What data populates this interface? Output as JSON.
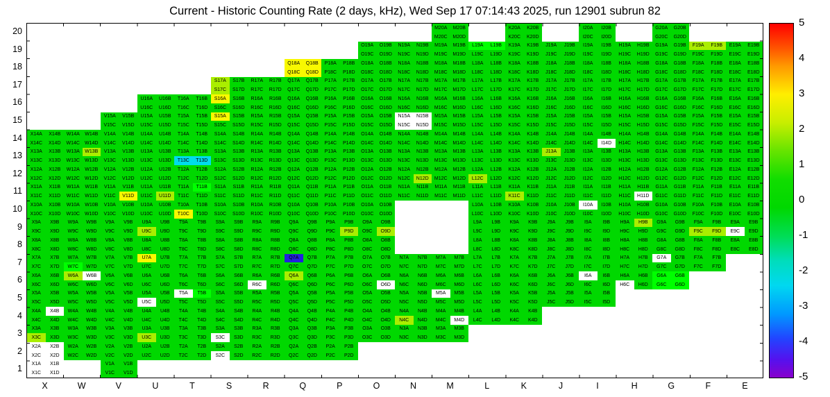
{
  "title": "Current - Historic Counting Rate (2 days, kHz), Wed Sep 17 07:14:43 2025, run 12901 subrun 82",
  "chart_data": {
    "type": "heatmap",
    "title": "Current - Historic Counting Rate (2 days, kHz), Wed Sep 17 07:14:43 2025, run 12901 subrun 82",
    "columns": [
      "X",
      "W",
      "V",
      "U",
      "T",
      "S",
      "R",
      "Q",
      "P",
      "O",
      "N",
      "M",
      "L",
      "K",
      "J",
      "I",
      "H",
      "G",
      "F",
      "E"
    ],
    "rows": [
      "20",
      "19",
      "18",
      "17",
      "16",
      "15",
      "14",
      "13",
      "12",
      "11",
      "10",
      "9",
      "8",
      "7",
      "6",
      "5",
      "4",
      "3",
      "2",
      "1"
    ],
    "quadrants": [
      "A",
      "B",
      "C",
      "D"
    ],
    "cell_label_format": "{column}{row}{quadrant}",
    "default_color_name": "green",
    "palette": {
      "green": "#00d800",
      "bright-green": "#00ff00",
      "yellow-green": "#aaee00",
      "yellow": "#f8f800",
      "cyan": "#00dcec",
      "blue": "#2222dd",
      "white": "#ffffff"
    },
    "value_by_color": {
      "green": 0,
      "bright-green": 0.5,
      "yellow-green": 1,
      "yellow": 2.5,
      "cyan": -1.5,
      "blue": -3,
      "white": null
    },
    "present_cells": {
      "20": [
        "M",
        "K",
        "I",
        "G"
      ],
      "19": [
        "O",
        "N",
        "M",
        "L",
        "K",
        "J",
        "I",
        "H",
        "G",
        "F",
        "E"
      ],
      "18": [
        "Q",
        "P",
        "O",
        "N",
        "M",
        "L",
        "K",
        "J",
        "I",
        "H",
        "G",
        "F",
        "E"
      ],
      "17": [
        "S",
        "R",
        "Q",
        "P",
        "O",
        "N",
        "M",
        "L",
        "K",
        "J",
        "I",
        "H",
        "G",
        "F",
        "E"
      ],
      "16": [
        "U",
        "T",
        "S",
        "R",
        "Q",
        "P",
        "O",
        "N",
        "M",
        "L",
        "K",
        "J",
        "I",
        "H",
        "G",
        "F",
        "E"
      ],
      "15": [
        "V",
        "U",
        "T",
        "S",
        "R",
        "Q",
        "P",
        "O",
        "N",
        "M",
        "L",
        "K",
        "J",
        "I",
        "H",
        "G",
        "F",
        "E"
      ],
      "14": [
        "X",
        "W",
        "V",
        "U",
        "T",
        "S",
        "R",
        "Q",
        "P",
        "O",
        "N",
        "M",
        "L",
        "K",
        "J",
        "I",
        "H",
        "G",
        "F",
        "E"
      ],
      "13": [
        "X",
        "W",
        "V",
        "U",
        "T",
        "S",
        "R",
        "Q",
        "P",
        "O",
        "N",
        "M",
        "L",
        "K",
        "J",
        "I",
        "H",
        "G",
        "F",
        "E"
      ],
      "12": [
        "X",
        "W",
        "V",
        "U",
        "T",
        "S",
        "R",
        "Q",
        "P",
        "O",
        "N",
        "M",
        "L",
        "K",
        "J",
        "I",
        "H",
        "G",
        "F",
        "E"
      ],
      "11": [
        "X",
        "W",
        "V",
        "U",
        "T",
        "S",
        "R",
        "Q",
        "P",
        "O",
        "N",
        "M",
        "L",
        "K",
        "J",
        "I",
        "H",
        "G",
        "F",
        "E"
      ],
      "10": [
        "X",
        "W",
        "V",
        "U",
        "T",
        "S",
        "R",
        "Q",
        "P",
        "O",
        "L",
        "K",
        "J",
        "I",
        "H",
        "G",
        "F",
        "E"
      ],
      "9": [
        "X",
        "W",
        "V",
        "U",
        "T",
        "S",
        "R",
        "Q",
        "P",
        "O",
        "L",
        "K",
        "J",
        "I",
        "H",
        "G",
        "F",
        "E"
      ],
      "8": [
        "X",
        "W",
        "V",
        "U",
        "T",
        "S",
        "R",
        "Q",
        "P",
        "O",
        "L",
        "K",
        "J",
        "I",
        "H",
        "G",
        "F",
        "E"
      ],
      "7": [
        "X",
        "W",
        "V",
        "U",
        "T",
        "S",
        "R",
        "Q",
        "P",
        "O",
        "N",
        "M",
        "L",
        "K",
        "J",
        "I",
        "H",
        "G",
        "F"
      ],
      "6": [
        "X",
        "W",
        "V",
        "U",
        "T",
        "S",
        "R",
        "Q",
        "P",
        "O",
        "N",
        "M",
        "L",
        "K",
        "J",
        "I",
        "H",
        "G"
      ],
      "5": [
        "X",
        "W",
        "V",
        "U",
        "T",
        "S",
        "R",
        "Q",
        "P",
        "O",
        "N",
        "M",
        "L",
        "K",
        "J",
        "I"
      ],
      "4": [
        "X",
        "W",
        "V",
        "U",
        "T",
        "S",
        "R",
        "Q",
        "P",
        "O",
        "N",
        "M",
        "L",
        "K"
      ],
      "3": [
        "X",
        "W",
        "V",
        "U",
        "T",
        "S",
        "R",
        "Q",
        "P",
        "O",
        "N",
        "M"
      ],
      "2": [
        "X",
        "W",
        "V",
        "U",
        "T",
        "S",
        "R",
        "Q",
        "P"
      ],
      "1": [
        "X",
        "V"
      ]
    },
    "anomalies": [
      {
        "cell": "Q18",
        "quads": "ABCD",
        "color": "yellow"
      },
      {
        "cell": "S17",
        "quads": "AC",
        "color": "yellow-green"
      },
      {
        "cell": "S16",
        "quads": "A",
        "color": "yellow"
      },
      {
        "cell": "S15",
        "quads": "A",
        "color": "yellow"
      },
      {
        "cell": "N15",
        "quads": "ABCD",
        "color": "white"
      },
      {
        "cell": "L19",
        "quads": "AB",
        "color": "bright-green"
      },
      {
        "cell": "F19",
        "quads": "AB",
        "color": "yellow-green"
      },
      {
        "cell": "W13",
        "quads": "B",
        "color": "yellow-green"
      },
      {
        "cell": "T13",
        "quads": "CD",
        "color": "cyan"
      },
      {
        "cell": "J13",
        "quads": "A",
        "color": "yellow-green"
      },
      {
        "cell": "I14",
        "quads": "D",
        "color": "white"
      },
      {
        "cell": "N12",
        "quads": "D",
        "color": "yellow-green"
      },
      {
        "cell": "L12",
        "quads": "C",
        "color": "yellow-green"
      },
      {
        "cell": "V11",
        "quads": "D",
        "color": "yellow"
      },
      {
        "cell": "U11",
        "quads": "D",
        "color": "yellow-green"
      },
      {
        "cell": "T11",
        "quads": "B",
        "color": "bright-green"
      },
      {
        "cell": "K11",
        "quads": "C",
        "color": "yellow-green"
      },
      {
        "cell": "H11",
        "quads": "D",
        "color": "white"
      },
      {
        "cell": "T10",
        "quads": "C",
        "color": "yellow"
      },
      {
        "cell": "I10",
        "quads": "A",
        "color": "white"
      },
      {
        "cell": "U9",
        "quads": "C",
        "color": "yellow-green"
      },
      {
        "cell": "P9",
        "quads": "D",
        "color": "yellow-green"
      },
      {
        "cell": "O9",
        "quads": "D",
        "color": "yellow-green"
      },
      {
        "cell": "H9",
        "quads": "B",
        "color": "yellow-green"
      },
      {
        "cell": "F9",
        "quads": "CD",
        "color": "yellow-green"
      },
      {
        "cell": "E9",
        "quads": "C",
        "color": "white"
      },
      {
        "cell": "W7",
        "quads": "C",
        "color": "bright-green"
      },
      {
        "cell": "U7",
        "quads": "A",
        "color": "yellow"
      },
      {
        "cell": "Q7",
        "quads": "A",
        "color": "blue"
      },
      {
        "cell": "G7",
        "quads": "A",
        "color": "white"
      },
      {
        "cell": "W6",
        "quads": "A",
        "color": "yellow-green"
      },
      {
        "cell": "W6",
        "quads": "B",
        "color": "white"
      },
      {
        "cell": "Q6",
        "quads": "A",
        "color": "yellow-green"
      },
      {
        "cell": "R6",
        "quads": "C",
        "color": "white"
      },
      {
        "cell": "O6",
        "quads": "D",
        "color": "white"
      },
      {
        "cell": "I6",
        "quads": "A",
        "color": "white"
      },
      {
        "cell": "H6",
        "quads": "C",
        "color": "white"
      },
      {
        "cell": "G6",
        "quads": "ABCD",
        "color": "bright-green"
      },
      {
        "cell": "T5",
        "quads": "A",
        "color": "white"
      },
      {
        "cell": "T5",
        "quads": "B",
        "color": "bright-green"
      },
      {
        "cell": "U5",
        "quads": "C",
        "color": "white"
      },
      {
        "cell": "M5",
        "quads": "A",
        "color": "white"
      },
      {
        "cell": "X4",
        "quads": "B",
        "color": "white"
      },
      {
        "cell": "N4",
        "quads": "C",
        "color": "yellow-green"
      },
      {
        "cell": "M4",
        "quads": "D",
        "color": "white"
      },
      {
        "cell": "X3",
        "quads": "C",
        "color": "yellow-green"
      },
      {
        "cell": "U3",
        "quads": "C",
        "color": "yellow-green"
      },
      {
        "cell": "S3",
        "quads": "C",
        "color": "white"
      },
      {
        "cell": "S2",
        "quads": "C",
        "color": "white"
      },
      {
        "cell": "X2",
        "quads": "ABCD",
        "color": "white"
      },
      {
        "cell": "X1",
        "quads": "ABCD",
        "color": "white"
      }
    ],
    "colorbar": {
      "min": -5,
      "max": 5,
      "ticks": [
        "5",
        "4",
        "3",
        "2",
        "1",
        "0",
        "-1",
        "-2",
        "-3",
        "-4",
        "-5"
      ],
      "gradient": [
        {
          "pos": 0,
          "color": "#ff0000"
        },
        {
          "pos": 7,
          "color": "#ff5500"
        },
        {
          "pos": 12,
          "color": "#ff9900"
        },
        {
          "pos": 20,
          "color": "#ffee00"
        },
        {
          "pos": 28,
          "color": "#c8ee00"
        },
        {
          "pos": 36,
          "color": "#66e400"
        },
        {
          "pos": 44,
          "color": "#11dd00"
        },
        {
          "pos": 52,
          "color": "#00d800"
        },
        {
          "pos": 60,
          "color": "#00dd55"
        },
        {
          "pos": 67,
          "color": "#00ddbb"
        },
        {
          "pos": 74,
          "color": "#00d8f0"
        },
        {
          "pos": 82,
          "color": "#0099ff"
        },
        {
          "pos": 89,
          "color": "#2244ff"
        },
        {
          "pos": 95,
          "color": "#5511ee"
        },
        {
          "pos": 100,
          "color": "#8800cc"
        }
      ]
    }
  }
}
